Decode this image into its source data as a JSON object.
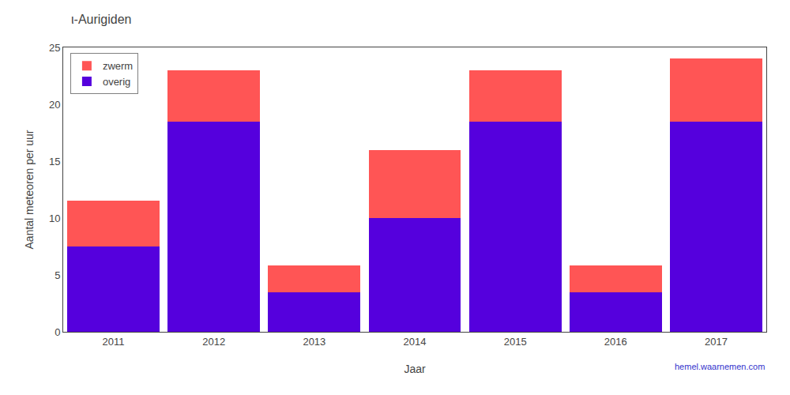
{
  "chart_data": {
    "type": "bar",
    "stacked": true,
    "title": "ι-Aurigiden",
    "xlabel": "Jaar",
    "ylabel": "Aantal meteoren per uur",
    "categories": [
      "2011",
      "2012",
      "2013",
      "2014",
      "2015",
      "2016",
      "2017"
    ],
    "series": [
      {
        "name": "overig",
        "color": "#5500dd",
        "values": [
          7.5,
          18.5,
          3.5,
          10.0,
          18.5,
          3.5,
          18.5
        ]
      },
      {
        "name": "zwerm",
        "color": "#ff5555",
        "values": [
          4.0,
          4.5,
          2.3,
          6.0,
          4.5,
          2.3,
          5.5
        ]
      }
    ],
    "ylim": [
      0,
      25
    ],
    "yticks": [
      0,
      5,
      10,
      15,
      20,
      25
    ],
    "grid": false,
    "legend": "upper left",
    "annotations": [
      "hemel.waarnemen.com"
    ]
  }
}
